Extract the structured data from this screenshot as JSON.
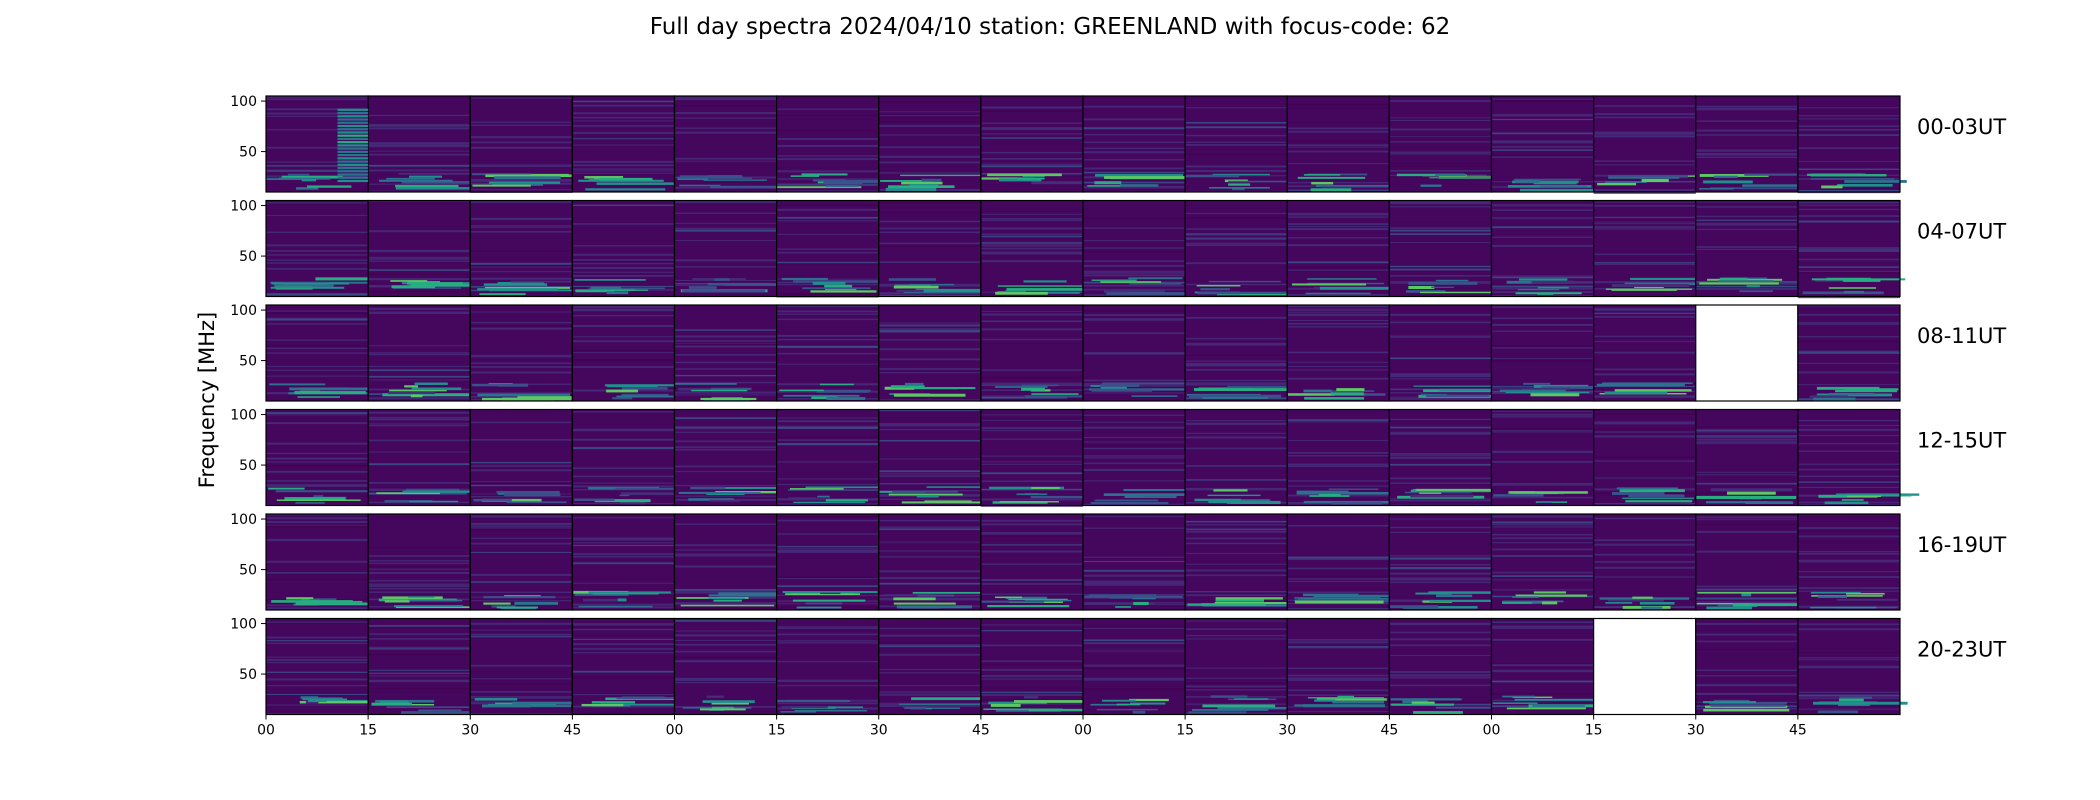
{
  "chart_data": {
    "type": "heatmap",
    "title": "Full day spectra 2024/04/10 station: GREENLAND with focus-code: 62",
    "ylabel": "Frequency [MHz]",
    "ylim": [
      10,
      105
    ],
    "yticks": [
      "100",
      "50"
    ],
    "xticks": [
      "00",
      "15",
      "30",
      "45",
      "00",
      "15",
      "30",
      "45",
      "00",
      "15",
      "30",
      "45",
      "00",
      "15",
      "30",
      "45"
    ],
    "colormap": [
      "#440154",
      "#472c7a",
      "#3b518b",
      "#2c718e",
      "#21908d",
      "#27ad81",
      "#5cc863",
      "#aadc32",
      "#fde725"
    ],
    "panel_minutes": 15,
    "panels_per_row": 16,
    "rows": [
      {
        "label": "00-03UT",
        "missing_panels": []
      },
      {
        "label": "04-07UT",
        "missing_panels": []
      },
      {
        "label": "08-11UT",
        "missing_panels": [
          14
        ]
      },
      {
        "label": "12-15UT",
        "missing_panels": []
      },
      {
        "label": "16-19UT",
        "missing_panels": []
      },
      {
        "label": "20-23UT",
        "missing_panels": [
          13
        ]
      }
    ]
  }
}
